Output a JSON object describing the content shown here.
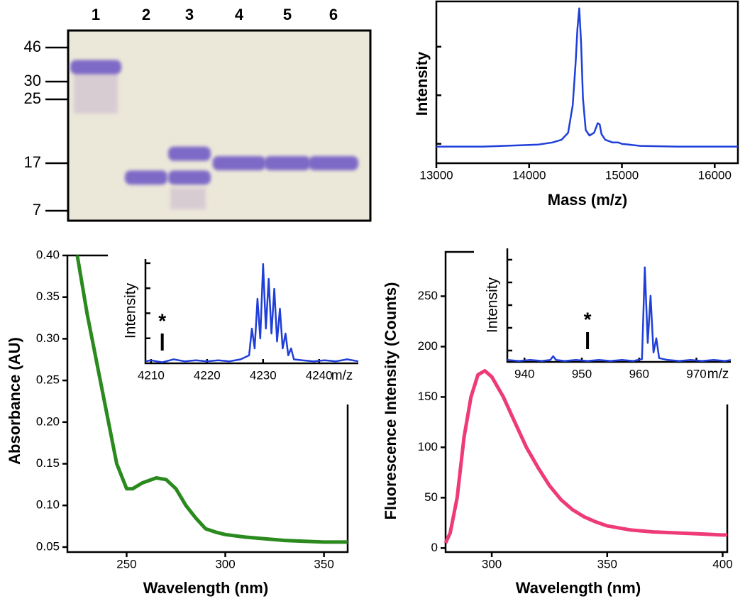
{
  "chart_data": [
    {
      "type": "gel",
      "categories": [
        "1",
        "2",
        "3",
        "4",
        "5",
        "6"
      ],
      "yticks": [
        46,
        30,
        25,
        17,
        7
      ],
      "bands": [
        [
          36
        ],
        [
          13
        ],
        [
          18,
          13
        ],
        [
          17
        ],
        [
          17
        ],
        [
          17
        ]
      ],
      "color": "#6b54c4"
    },
    {
      "type": "line",
      "xlabel": "Mass (m/z)",
      "ylabel": "Intensity",
      "color": "#1f3fd8",
      "xlim": [
        13000,
        16250
      ],
      "ylim": [
        -12,
        105
      ],
      "xticks": [
        13000,
        14000,
        15000,
        16000
      ],
      "x": [
        13000,
        13500,
        13900,
        14100,
        14250,
        14350,
        14420,
        14470,
        14500,
        14520,
        14540,
        14560,
        14580,
        14610,
        14650,
        14700,
        14740,
        14760,
        14780,
        14820,
        14900,
        14960,
        15000,
        15200,
        15600,
        16000,
        16250
      ],
      "values": [
        0,
        0,
        1,
        1.5,
        3,
        5,
        10,
        30,
        60,
        85,
        100,
        75,
        35,
        12,
        8,
        10,
        17,
        16,
        9,
        5,
        3,
        3,
        2,
        0.5,
        0,
        0,
        0
      ]
    },
    {
      "type": "line",
      "xlabel": "Wavelength (nm)",
      "ylabel": "Absorbance (AU)",
      "color": "#2a8a1e",
      "xlim": [
        220,
        362
      ],
      "ylim": [
        0.044,
        0.4
      ],
      "xticks": [
        250,
        300,
        350
      ],
      "yticks": [
        0.05,
        {
          "value": 0.1,
          "label": "0.10"
        },
        0.15,
        {
          "value": 0.2,
          "label": "0.20"
        },
        0.25,
        {
          "value": 0.3,
          "label": "0.30"
        },
        0.35,
        {
          "value": 0.4,
          "label": "0.40"
        }
      ],
      "x": [
        225,
        230,
        235,
        240,
        245,
        250,
        253,
        258,
        265,
        270,
        275,
        280,
        285,
        290,
        295,
        300,
        310,
        320,
        330,
        340,
        350,
        362
      ],
      "values": [
        0.4,
        0.33,
        0.27,
        0.21,
        0.15,
        0.12,
        0.12,
        0.127,
        0.133,
        0.131,
        0.12,
        0.1,
        0.085,
        0.072,
        0.068,
        0.065,
        0.062,
        0.06,
        0.058,
        0.057,
        0.056,
        0.056
      ]
    },
    {
      "type": "line",
      "xlabel": "m/z",
      "ylabel": "Intensity",
      "color": "#1f3fd8",
      "xlim": [
        4209,
        4247
      ],
      "ylim": [
        0,
        105
      ],
      "xticks": [
        4210,
        4220,
        4230,
        4240
      ],
      "annotation": {
        "text": "*",
        "x": 4212
      },
      "x": [
        4209,
        4210,
        4212,
        4214,
        4216,
        4218,
        4220,
        4222,
        4224,
        4226,
        4227.5,
        4228,
        4228.5,
        4229,
        4229.5,
        4230,
        4230.5,
        4231,
        4231.5,
        4232,
        4232.5,
        4233,
        4233.5,
        4234,
        4234.5,
        4235,
        4235.5,
        4237,
        4239,
        4241,
        4243,
        4245,
        4247
      ],
      "values": [
        2,
        3,
        1,
        4,
        2,
        3,
        2,
        3,
        2,
        4,
        8,
        35,
        15,
        65,
        25,
        100,
        35,
        85,
        30,
        75,
        22,
        55,
        15,
        30,
        8,
        15,
        4,
        3,
        2,
        3,
        2,
        4,
        2
      ]
    },
    {
      "type": "line",
      "xlabel": "Wavelength (nm)",
      "ylabel": "Fluorescence Intensity (Counts)",
      "color": "#ee3a78",
      "xlim": [
        280,
        402
      ],
      "ylim": [
        -4,
        294
      ],
      "xticks": [
        300,
        350,
        400
      ],
      "yticks": [
        0,
        50,
        100,
        150,
        200,
        250
      ],
      "x": [
        280,
        282,
        285,
        288,
        291,
        294,
        297,
        300,
        305,
        310,
        315,
        320,
        325,
        330,
        335,
        340,
        345,
        350,
        360,
        370,
        380,
        390,
        400,
        402
      ],
      "values": [
        5,
        15,
        50,
        110,
        150,
        172,
        176,
        170,
        150,
        125,
        100,
        80,
        62,
        48,
        38,
        31,
        26,
        22,
        18,
        16,
        15,
        14,
        13,
        13
      ]
    },
    {
      "type": "line",
      "xlabel": "m/z",
      "ylabel": "Intensity",
      "color": "#1f3fd8",
      "xlim": [
        937,
        976
      ],
      "ylim": [
        0,
        120
      ],
      "xticks": [
        940,
        950,
        960,
        970
      ],
      "annotation": {
        "text": "*",
        "x": 951
      },
      "x": [
        937,
        939,
        941,
        943,
        944.5,
        945,
        945.5,
        947,
        949,
        951,
        953,
        955,
        957,
        959,
        960.5,
        961,
        961.5,
        962,
        962.5,
        963,
        963.5,
        965,
        967,
        969,
        971,
        973,
        975,
        976
      ],
      "values": [
        2,
        1,
        2,
        1,
        2,
        6,
        2,
        1,
        2,
        1,
        2,
        1,
        2,
        1,
        3,
        100,
        20,
        70,
        10,
        25,
        4,
        2,
        1,
        2,
        1,
        2,
        1,
        2
      ]
    }
  ]
}
